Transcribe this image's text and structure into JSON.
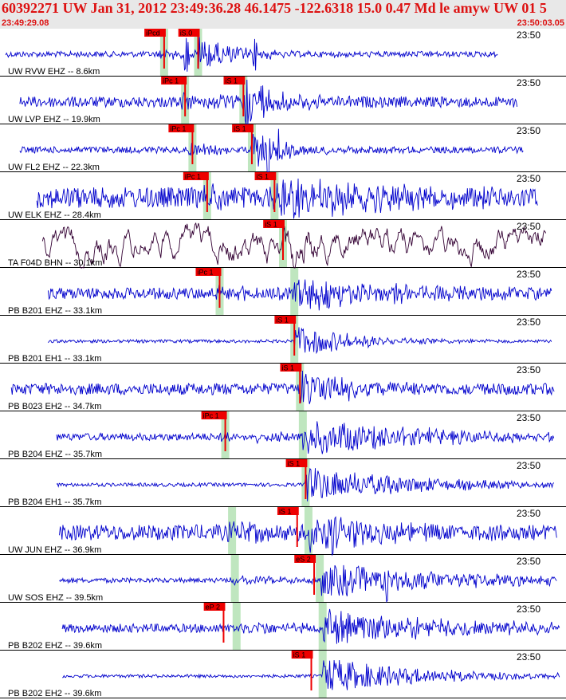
{
  "header": {
    "title": "60392271 UW Jan 31, 2012 23:49:36.28   46.1475 -122.6318 15.0 0.47 Md le amyw UW 01   5",
    "start_time": "23:49:29.08",
    "end_time": "23:50:03.05"
  },
  "colors": {
    "header_text": "#dd1111",
    "trace_default": "#0000cc",
    "trace_alt": "#330033",
    "pick_box": "#ee0000",
    "pick_band": "#bfe6bf",
    "background": "#ffffff"
  },
  "chart_data": {
    "type": "line",
    "title": "",
    "x_range_time": [
      "23:49:29.08",
      "23:50:03.05"
    ],
    "minute_label": "23:50",
    "traces": [
      {
        "label": "UW RVW EHZ -- 8.6km",
        "color": "blue",
        "amp": 0.08,
        "start": 0.01,
        "end": 0.88,
        "first": 0.282,
        "arrivals": [
          0.29,
          0.35
        ],
        "picks": [
          {
            "label": "iPcd",
            "t": 0.29
          },
          {
            "label": "iS.0",
            "t": 0.35
          }
        ],
        "peaks": [
          0.33,
          0.45
        ],
        "coda": 0.07
      },
      {
        "label": "UW LVP EHZ -- 19.9km",
        "color": "blue",
        "amp": 0.2,
        "start": 0.035,
        "end": 0.915,
        "first": 0.317,
        "arrivals": [
          0.327,
          0.43
        ],
        "picks": [
          {
            "label": "iPc 1",
            "t": 0.327
          },
          {
            "label": "iS 1",
            "t": 0.43
          }
        ],
        "peaks": [
          0.435,
          0.465
        ],
        "coda": 0.08
      },
      {
        "label": "UW FL2 EHZ -- 22.3km",
        "color": "blue",
        "amp": 0.1,
        "start": 0.035,
        "end": 0.925,
        "first": 0.33,
        "arrivals": [
          0.34,
          0.445
        ],
        "picks": [
          {
            "label": "iPc 1",
            "t": 0.34
          },
          {
            "label": "iS 1",
            "t": 0.445
          }
        ],
        "peaks": [
          0.475,
          0.495
        ],
        "coda": 0.07
      },
      {
        "label": "UW ELK EHZ -- 28.4km",
        "color": "blue",
        "amp": 0.45,
        "start": 0.065,
        "end": 0.95,
        "first": 0.355,
        "arrivals": [
          0.366,
          0.485
        ],
        "picks": [
          {
            "label": "iPc 1",
            "t": 0.366
          },
          {
            "label": "iS 1",
            "t": 0.485
          }
        ],
        "peaks": [
          0.525
        ],
        "coda": 0.18
      },
      {
        "label": "TA F04D BHN -- 30.1km",
        "color": "dark",
        "amp": 0.55,
        "start": 0.075,
        "end": 0.965,
        "first": -1,
        "arrivals": [
          0.5
        ],
        "picks": [
          {
            "label": "iS 1",
            "t": 0.5
          }
        ],
        "peaks": [],
        "coda": 0.05
      },
      {
        "label": "PB B201 EHZ -- 33.1km",
        "color": "blue",
        "amp": 0.22,
        "start": 0.085,
        "end": 0.975,
        "first": 0.38,
        "arrivals": [
          0.388,
          0.52
        ],
        "picks": [
          {
            "label": "iPc 1",
            "t": 0.388
          }
        ],
        "peaks": [],
        "coda": 0.18
      },
      {
        "label": "PB B201 EH1 -- 33.1km",
        "color": "blue",
        "amp": 0.02,
        "start": 0.085,
        "end": 0.975,
        "first": -1,
        "arrivals": [
          0.52
        ],
        "picks": [
          {
            "label": "iS 1",
            "t": 0.52
          }
        ],
        "peaks": [],
        "coda": 0.1
      },
      {
        "label": "PB B023 EH2 -- 34.7km",
        "color": "blue",
        "amp": 0.22,
        "start": 0.02,
        "end": 0.98,
        "first": -1,
        "arrivals": [
          0.53
        ],
        "picks": [
          {
            "label": "iS 1",
            "t": 0.53
          }
        ],
        "peaks": [],
        "coda": 0.1
      },
      {
        "label": "PB B204 EHZ -- 35.7km",
        "color": "blue",
        "amp": 0.12,
        "start": 0.1,
        "end": 0.98,
        "first": 0.39,
        "arrivals": [
          0.398,
          0.535
        ],
        "picks": [
          {
            "label": "iPc 1",
            "t": 0.398
          }
        ],
        "peaks": [],
        "coda": 0.22
      },
      {
        "label": "PB B204 EH1 -- 35.7km",
        "color": "blue",
        "amp": 0.03,
        "start": 0.1,
        "end": 0.98,
        "first": -1,
        "arrivals": [
          0.54
        ],
        "picks": [
          {
            "label": "iS 1",
            "t": 0.54
          }
        ],
        "peaks": [],
        "coda": 0.2
      },
      {
        "label": "UW JUN EHZ -- 36.9km",
        "color": "blue",
        "amp": 0.32,
        "start": 0.105,
        "end": 0.985,
        "first": 0.4,
        "arrivals": [
          0.41,
          0.545
        ],
        "picks": [
          {
            "label": "iS 1",
            "t": 0.525
          }
        ],
        "peaks": [
          0.59
        ],
        "coda": 0.12
      },
      {
        "label": "UW SOS EHZ -- 39.5km",
        "color": "blue",
        "amp": 0.06,
        "start": 0.105,
        "end": 0.985,
        "first": 0.405,
        "arrivals": [
          0.415,
          0.565
        ],
        "picks": [
          {
            "label": "eS 2",
            "t": 0.555
          }
        ],
        "peaks": [
          0.685
        ],
        "coda": 0.25
      },
      {
        "label": "PB B202 EHZ -- 39.6km",
        "color": "blue",
        "amp": 0.15,
        "start": 0.11,
        "end": 0.99,
        "first": 0.41,
        "arrivals": [
          0.418,
          0.57
        ],
        "picks": [
          {
            "label": "eP 2",
            "t": 0.395
          }
        ],
        "peaks": [],
        "coda": 0.22
      },
      {
        "label": "PB B202 EH2 -- 39.6km",
        "color": "blue",
        "amp": 0.02,
        "start": 0.11,
        "end": 0.99,
        "first": -1,
        "arrivals": [
          0.57
        ],
        "picks": [
          {
            "label": "iS 1",
            "t": 0.55
          }
        ],
        "peaks": [],
        "coda": 0.18
      }
    ]
  }
}
